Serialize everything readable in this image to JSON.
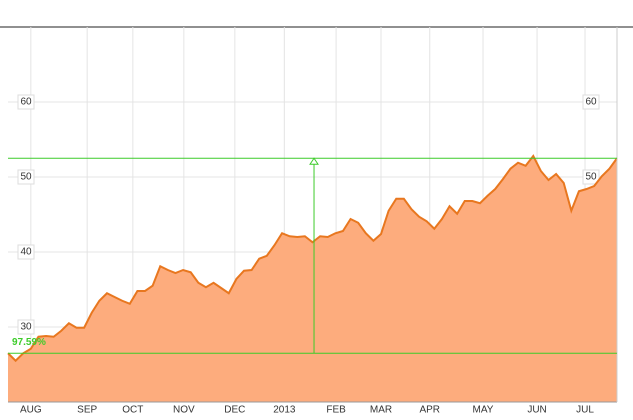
{
  "chart_data": {
    "type": "area",
    "x": [
      0,
      1,
      2,
      3,
      4,
      5,
      6,
      7,
      8,
      9,
      10,
      11,
      12,
      13,
      14,
      15,
      16,
      17,
      18,
      19,
      20,
      21,
      22,
      23,
      24,
      25,
      26,
      27,
      28,
      29,
      30,
      31,
      32,
      33,
      34,
      35,
      36,
      37,
      38,
      39,
      40,
      41,
      42,
      43,
      44,
      45,
      46,
      47,
      48,
      49,
      50,
      51,
      52,
      53,
      54,
      55,
      56,
      57,
      58,
      59,
      60,
      61,
      62,
      63,
      64,
      65,
      66,
      67,
      68,
      69,
      70,
      71,
      72,
      73,
      74,
      75,
      76,
      77,
      78,
      79,
      80
    ],
    "series": [
      {
        "color": "#e8771f",
        "fill": "#fdac7d",
        "values": [
          26.5,
          25.5,
          26.5,
          27.1,
          28.7,
          28.8,
          28.7,
          29.5,
          30.5,
          29.9,
          29.9,
          31.9,
          33.5,
          34.5,
          34,
          33.5,
          33.1,
          34.8,
          34.8,
          35.5,
          38.1,
          37.6,
          37.2,
          37.6,
          37.3,
          35.9,
          35.3,
          35.9,
          35.2,
          34.5,
          36.4,
          37.5,
          37.6,
          39.1,
          39.5,
          40.9,
          42.5,
          42.1,
          42,
          42.1,
          41.3,
          42.1,
          42,
          42.5,
          42.8,
          44.4,
          43.9,
          42.5,
          41.5,
          42.4,
          45.5,
          47.1,
          47.1,
          45.7,
          44.7,
          44.1,
          43.1,
          44.4,
          46.1,
          45.1,
          46.8,
          46.8,
          46.5,
          47.5,
          48.4,
          49.7,
          51.1,
          51.9,
          51.5,
          52.8,
          50.8,
          49.6,
          50.4,
          49.2,
          45.5,
          48.1,
          48.4,
          48.8,
          50.1,
          51.1,
          52.5
        ]
      }
    ],
    "xlim": [
      0,
      80
    ],
    "xticks": [
      {
        "value": 3.0,
        "label": "AUG"
      },
      {
        "value": 10.4,
        "label": "SEP"
      },
      {
        "value": 16.4,
        "label": "OCT"
      },
      {
        "value": 23.1,
        "label": "NOV"
      },
      {
        "value": 29.8,
        "label": "DEC"
      },
      {
        "value": 36.3,
        "label": "2013"
      },
      {
        "value": 43.1,
        "label": "FEB"
      },
      {
        "value": 49.0,
        "label": "MAR"
      },
      {
        "value": 55.4,
        "label": "APR"
      },
      {
        "value": 62.4,
        "label": "MAY"
      },
      {
        "value": 69.5,
        "label": "JUN"
      },
      {
        "value": 75.8,
        "label": "JUL"
      }
    ],
    "ylim": [
      20,
      70
    ],
    "yticks": [
      30,
      40,
      50,
      60
    ],
    "grid": true,
    "annotation": {
      "text": "97.59%",
      "x": 40.2,
      "from": 26.5,
      "to": 52.5,
      "color": "#3dcc2a"
    }
  }
}
